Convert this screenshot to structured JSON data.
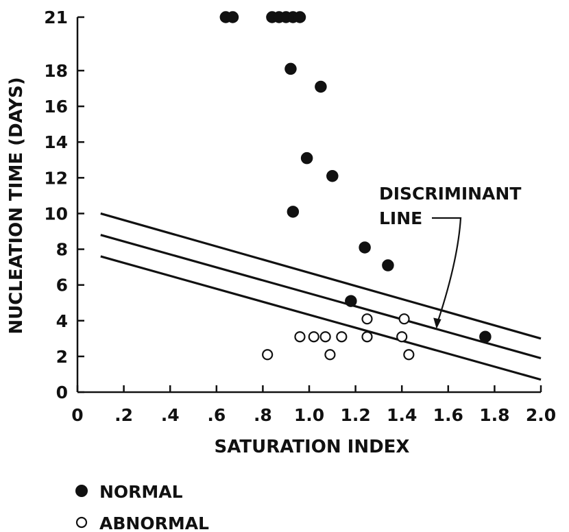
{
  "chart_data": {
    "type": "scatter",
    "xlabel": "SATURATION INDEX",
    "ylabel": "NUCLEATION TIME (DAYS)",
    "x_ticks": [
      "0",
      ".2",
      ".4",
      ".6",
      ".8",
      "1.0",
      "1.2",
      "1.4",
      "1.6",
      "1.8",
      "2.0"
    ],
    "x_tick_values": [
      0,
      0.2,
      0.4,
      0.6,
      0.8,
      1.0,
      1.2,
      1.4,
      1.6,
      1.8,
      2.0
    ],
    "y_ticks": [
      "0",
      "2",
      "4",
      "6",
      "8",
      "10",
      "12",
      "14",
      "16",
      "18",
      "21"
    ],
    "y_tick_values": [
      0,
      2,
      4,
      6,
      8,
      10,
      12,
      14,
      16,
      18,
      21
    ],
    "xlim": [
      0,
      2.0
    ],
    "ylim": [
      0,
      21
    ],
    "y_axis_break_between": [
      18,
      21
    ],
    "grid": false,
    "legend_placement": "bottom-left",
    "series": [
      {
        "name": "NORMAL",
        "marker": "filled-circle",
        "color": "#111111",
        "points": [
          [
            0.64,
            21
          ],
          [
            0.67,
            21
          ],
          [
            0.84,
            21
          ],
          [
            0.87,
            21
          ],
          [
            0.9,
            21
          ],
          [
            0.93,
            21
          ],
          [
            0.96,
            21
          ],
          [
            0.92,
            18.1
          ],
          [
            1.05,
            17.1
          ],
          [
            0.99,
            13.1
          ],
          [
            1.1,
            12.1
          ],
          [
            0.93,
            10.1
          ],
          [
            1.24,
            8.1
          ],
          [
            1.34,
            7.1
          ],
          [
            1.18,
            5.1
          ],
          [
            1.76,
            3.1
          ]
        ]
      },
      {
        "name": "ABNORMAL",
        "marker": "open-circle",
        "color": "#111111",
        "points": [
          [
            0.82,
            2.1
          ],
          [
            0.96,
            3.1
          ],
          [
            1.02,
            3.1
          ],
          [
            1.07,
            3.1
          ],
          [
            1.09,
            2.1
          ],
          [
            1.14,
            3.1
          ],
          [
            1.25,
            4.1
          ],
          [
            1.25,
            3.1
          ],
          [
            1.4,
            3.1
          ],
          [
            1.41,
            4.1
          ],
          [
            1.43,
            2.1
          ]
        ]
      }
    ],
    "lines": [
      {
        "role": "upper",
        "x": [
          0.1,
          2.0
        ],
        "y": [
          10.0,
          3.0
        ]
      },
      {
        "role": "discriminant",
        "x": [
          0.1,
          2.0
        ],
        "y": [
          8.8,
          1.9
        ]
      },
      {
        "role": "lower",
        "x": [
          0.1,
          2.0
        ],
        "y": [
          7.6,
          0.7
        ]
      }
    ],
    "annotation": {
      "lines": [
        "DISCRIMINANT",
        "LINE"
      ],
      "arrow_to": [
        1.55,
        3.6
      ]
    }
  }
}
